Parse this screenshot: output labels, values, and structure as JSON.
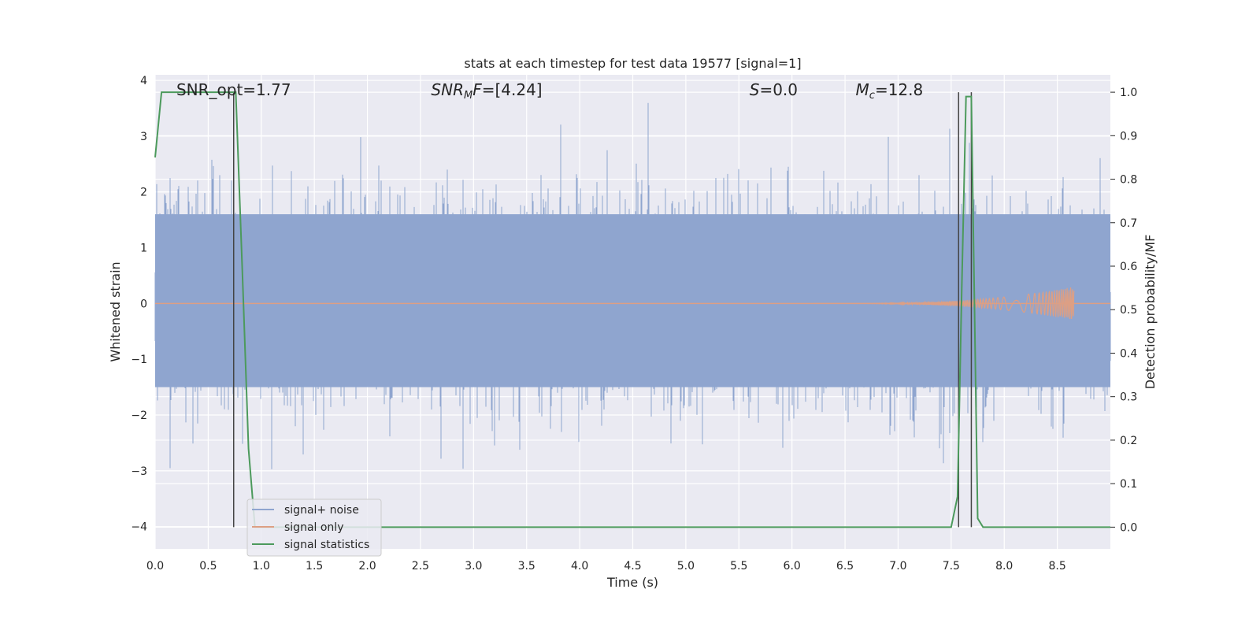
{
  "chart_data": {
    "type": "line",
    "title": "stats at each timestep for test data 19577 [signal=1]",
    "xlabel": "Time (s)",
    "ylabel": "Whitened strain",
    "y2label": "Detection probability/MF",
    "xlim": [
      0,
      9.0
    ],
    "ylim": [
      -4.4,
      4.1
    ],
    "y2lim": [
      -0.05,
      1.04
    ],
    "x_ticks": [
      0.0,
      0.5,
      1.0,
      1.5,
      2.0,
      2.5,
      3.0,
      3.5,
      4.0,
      4.5,
      5.0,
      5.5,
      6.0,
      6.5,
      7.0,
      7.5,
      8.0,
      8.5
    ],
    "x_tick_labels": [
      "0.0",
      "0.5",
      "1.0",
      "1.5",
      "2.0",
      "2.5",
      "3.0",
      "3.5",
      "4.0",
      "4.5",
      "5.0",
      "5.5",
      "6.0",
      "6.5",
      "7.0",
      "7.5",
      "8.0",
      "8.5"
    ],
    "y_ticks": [
      4,
      3,
      2,
      1,
      0,
      -1,
      -2,
      -3,
      -4
    ],
    "y_tick_labels": [
      "4",
      "3",
      "2",
      "1",
      "0",
      "−1",
      "−2",
      "−3",
      "−4"
    ],
    "y2_ticks": [
      1.0,
      0.9,
      0.8,
      0.7,
      0.6,
      0.5,
      0.4,
      0.3,
      0.2,
      0.1,
      0.0
    ],
    "y2_tick_labels": [
      "1.0",
      "0.9",
      "0.8",
      "0.7",
      "0.6",
      "0.5",
      "0.4",
      "0.3",
      "0.2",
      "0.1",
      "0.0"
    ],
    "grid": true,
    "legend_position": "lower-left",
    "annotations": [
      {
        "text": "SNR_opt=1.77",
        "x": 0.2
      },
      {
        "text": "SNR_MF=[4.24]",
        "x": 2.6
      },
      {
        "text": "S=0.0",
        "x": 5.6
      },
      {
        "text": "M_c=12.8",
        "x": 6.6
      }
    ],
    "annotation_parts": [
      [
        {
          "t": "SNR_opt=1.77",
          "i": false,
          "s": false
        }
      ],
      [
        {
          "t": "SNR",
          "i": true,
          "s": false
        },
        {
          "t": "M",
          "i": true,
          "s": true
        },
        {
          "t": "F",
          "i": true,
          "s": false
        },
        {
          "t": "=[4.24]",
          "i": false,
          "s": false
        }
      ],
      [
        {
          "t": "S",
          "i": true,
          "s": false
        },
        {
          "t": "=0.0",
          "i": false,
          "s": false
        }
      ],
      [
        {
          "t": "M",
          "i": true,
          "s": false
        },
        {
          "t": "c",
          "i": true,
          "s": true
        },
        {
          "t": "=12.8",
          "i": false,
          "s": false
        }
      ]
    ],
    "vertical_lines_x": [
      0.74,
      7.57,
      7.69
    ],
    "series": [
      {
        "name": "signal+ noise",
        "color": "#8fa5cf",
        "kind": "noise",
        "x_range": [
          0.0,
          9.0
        ],
        "std": 0.9,
        "dense_band": [
          -1.5,
          1.6
        ]
      },
      {
        "name": "signal only",
        "color": "#dd9f84",
        "kind": "chirp",
        "x_range": [
          6.2,
          8.66
        ],
        "max_amplitude": 0.3
      },
      {
        "name": "signal statistics",
        "color": "#4c9a5c",
        "kind": "line",
        "axis": "right",
        "x": [
          0.0,
          0.06,
          0.12,
          0.3,
          0.5,
          0.72,
          0.76,
          0.82,
          0.88,
          0.94,
          1.2,
          3.0,
          5.0,
          7.0,
          7.5,
          7.56,
          7.6,
          7.64,
          7.69,
          7.72,
          7.75,
          7.8,
          8.0,
          9.0
        ],
        "y": [
          0.85,
          1.0,
          1.0,
          1.0,
          1.0,
          1.0,
          1.0,
          0.6,
          0.18,
          0.0,
          0.0,
          0.0,
          0.0,
          0.0,
          0.0,
          0.07,
          0.55,
          0.99,
          0.99,
          0.5,
          0.02,
          0.0,
          0.0,
          0.0
        ]
      }
    ]
  }
}
